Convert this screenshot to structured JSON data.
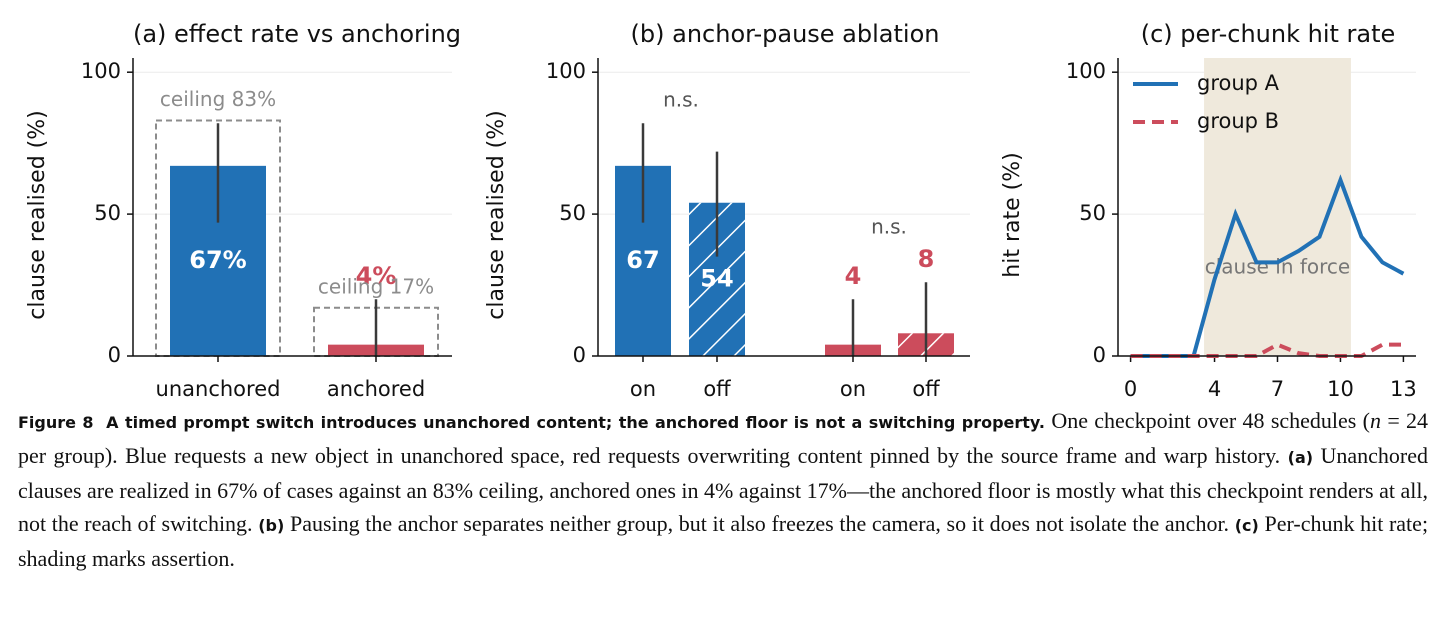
{
  "chart_data": [
    {
      "type": "bar",
      "title": "(a) effect rate vs anchoring",
      "ylabel": "clause realised (%)",
      "categories": [
        "unanchored",
        "anchored"
      ],
      "values": [
        67,
        4
      ],
      "value_labels": [
        "67%",
        "4%"
      ],
      "colors": [
        "#2171b5",
        "#cc4c5c"
      ],
      "ci_low": [
        47,
        0
      ],
      "ci_high": [
        82,
        20
      ],
      "ceilings": [
        83,
        17
      ],
      "ceiling_labels": [
        "ceiling 83%",
        "ceiling 17%"
      ],
      "ylim": [
        0,
        105
      ],
      "yticks": [
        0,
        50,
        100
      ],
      "grid": true
    },
    {
      "type": "bar",
      "title": "(b) anchor-pause ablation",
      "ylabel": "clause realised (%)",
      "categories": [
        "on",
        "off",
        "on",
        "off"
      ],
      "values": [
        67,
        54,
        4,
        8
      ],
      "colors": [
        "#2171b5",
        "#2171b5",
        "#cc4c5c",
        "#cc4c5c"
      ],
      "hatched": [
        false,
        true,
        false,
        true
      ],
      "ci_low": [
        47,
        35,
        0,
        0
      ],
      "ci_high": [
        82,
        72,
        20,
        26
      ],
      "annotations": [
        "n.s.",
        "n.s."
      ],
      "ylim": [
        0,
        105
      ],
      "yticks": [
        0,
        50,
        100
      ],
      "grid": true
    },
    {
      "type": "line",
      "title": "(c) per-chunk hit rate",
      "ylabel": "hit rate (%)",
      "x": [
        0,
        1,
        2,
        3,
        4,
        5,
        6,
        7,
        8,
        9,
        10,
        11,
        12,
        13
      ],
      "series": [
        {
          "name": "group A",
          "color": "#2171b5",
          "dashed": false,
          "values": [
            0,
            0,
            0,
            0,
            27,
            50,
            33,
            33,
            37,
            42,
            62,
            42,
            33,
            29
          ]
        },
        {
          "name": "group B",
          "color": "#cc4c5c",
          "dashed": true,
          "values": [
            0,
            0,
            0,
            0,
            0,
            0,
            0,
            4,
            1,
            0,
            0,
            0,
            4,
            4
          ]
        }
      ],
      "shade": [
        3.5,
        10.5
      ],
      "shade_color": "#efe9dc",
      "shade_label": "clause in force",
      "xlim": [
        -0.6,
        13.6
      ],
      "xticks": [
        0,
        4,
        7,
        10,
        13
      ],
      "ylim": [
        0,
        105
      ],
      "yticks": [
        0,
        50,
        100
      ],
      "grid": true,
      "legend": "upper left"
    }
  ],
  "caption": {
    "label": "Figure 8",
    "title": "A timed prompt switch introduces unanchored content; the anchored floor is not a switching property.",
    "body_1": "One checkpoint over 48 schedules (",
    "n_symbol": "n",
    "body_2": " = 24 per group). Blue requests a new object in unanchored space, red requests overwriting content pinned by the source frame and warp history.",
    "panel_a": "(a)",
    "text_a": "Unanchored clauses are realized in 67% of cases against an 83% ceiling, anchored ones in 4% against 17%—the anchored floor is mostly what this checkpoint renders at all, not the reach of switching.",
    "panel_b": "(b)",
    "text_b": "Pausing the anchor separates neither group, but it also freezes the camera, so it does not isolate the anchor.",
    "panel_c": "(c)",
    "text_c": "Per-chunk hit rate; shading marks assertion."
  }
}
